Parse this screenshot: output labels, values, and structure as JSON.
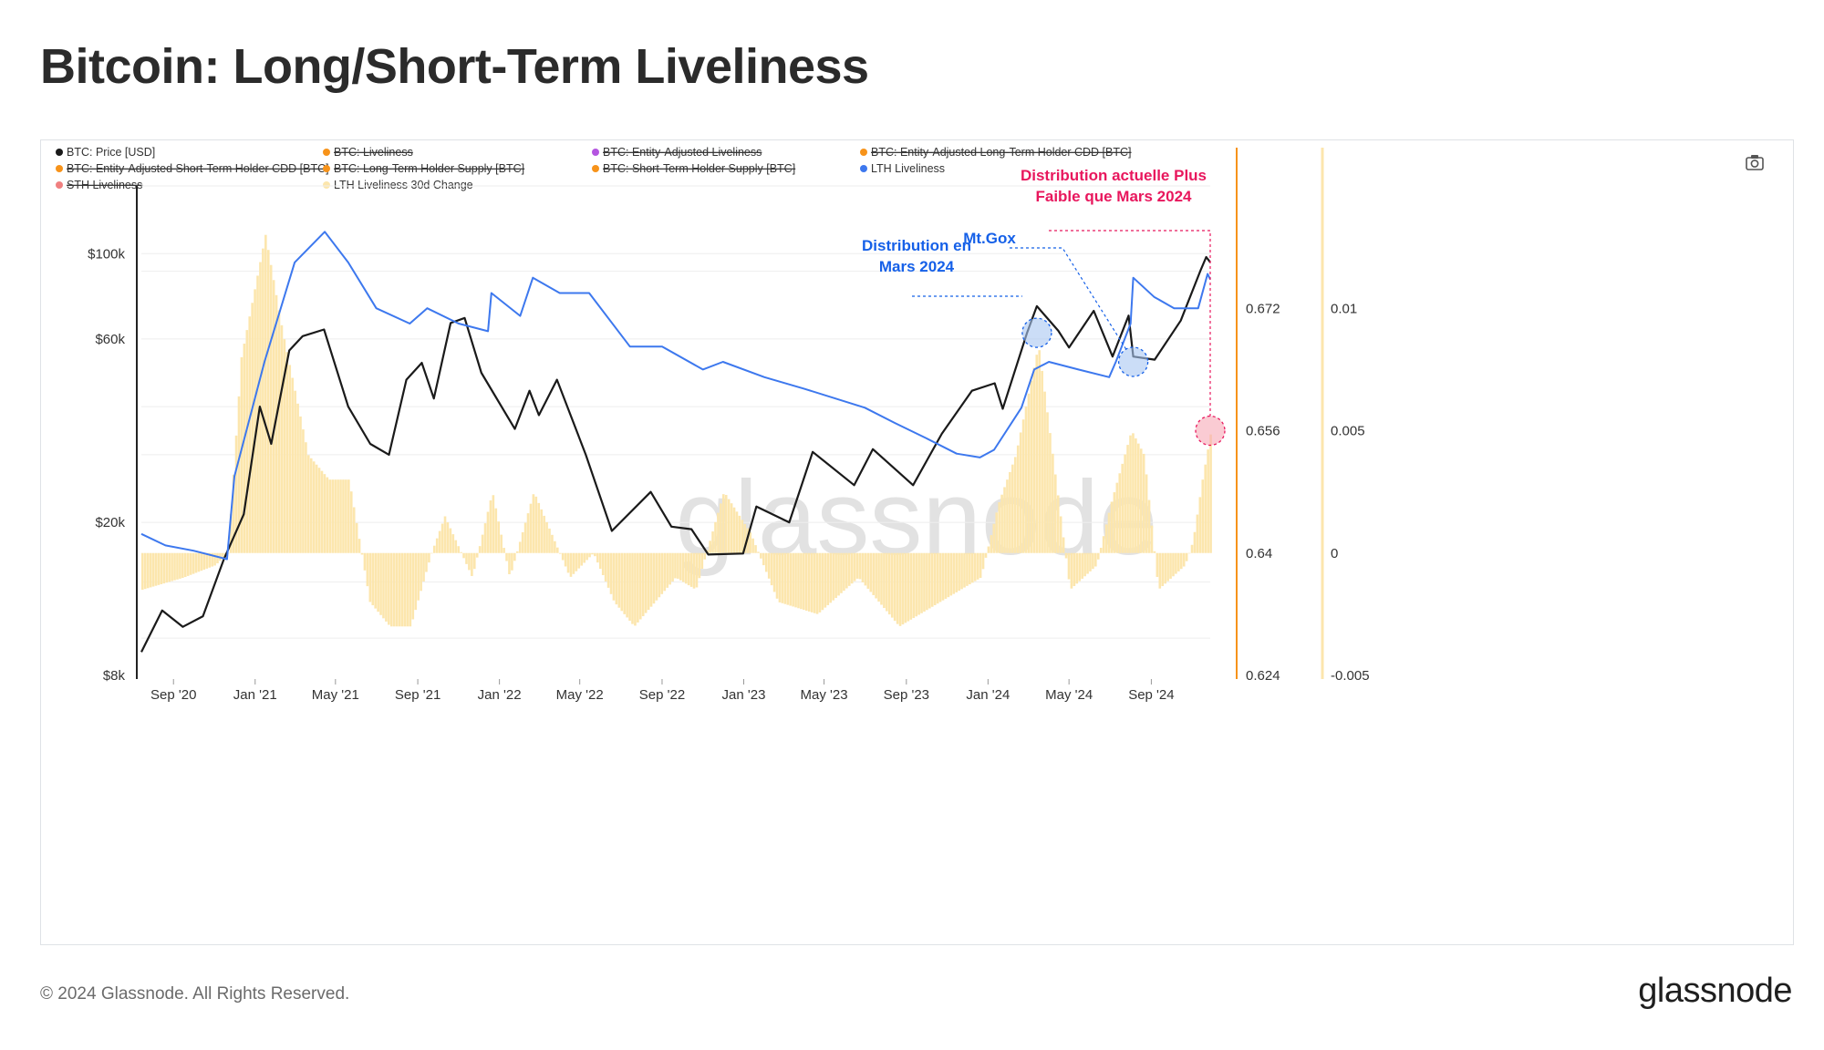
{
  "title": "Bitcoin: Long/Short-Term Liveliness",
  "footer": {
    "copyright": "© 2024 Glassnode. All Rights Reserved.",
    "logo": "glassnode"
  },
  "watermark": "glassnode",
  "camera_icon": "camera-icon",
  "legend": [
    {
      "label": "BTC: Price [USD]",
      "color": "#1a1a1a",
      "struck": false
    },
    {
      "label": "BTC: Liveliness",
      "color": "#f7931a",
      "struck": true
    },
    {
      "label": "BTC: Entity-Adjusted Liveliness",
      "color": "#b455e0",
      "struck": true
    },
    {
      "label": "BTC: Entity-Adjusted Long-Term Holder CDD [BTC]",
      "color": "#f7931a",
      "struck": true
    },
    {
      "label": "BTC: Entity-Adjusted Short-Term Holder CDD [BTC]",
      "color": "#f7931a",
      "struck": true
    },
    {
      "label": "BTC: Long-Term Holder Supply [BTC]",
      "color": "#f7931a",
      "struck": true
    },
    {
      "label": "BTC: Short-Term Holder Supply [BTC]",
      "color": "#f7931a",
      "struck": true
    },
    {
      "label": "LTH Liveliness",
      "color": "#3d78ee",
      "struck": false
    },
    {
      "label": "STH Liveliness",
      "color": "#f08080",
      "struck": true
    },
    {
      "label": "LTH Liveliness 30d Change",
      "color": "#fce6ad",
      "struck": false
    }
  ],
  "chart_data": {
    "type": "line",
    "x_ticks": [
      "Sep '20",
      "Jan '21",
      "May '21",
      "Sep '21",
      "Jan '22",
      "May '22",
      "Sep '22",
      "Jan '23",
      "May '23",
      "Sep '23",
      "Jan '24",
      "May '24",
      "Sep '24"
    ],
    "y_left_ticks": [
      "$100k",
      "$60k",
      "$20k",
      "$8k"
    ],
    "y_right_ticks": [
      "0.672",
      "0.656",
      "0.64",
      "0.624"
    ],
    "y_change_ticks": [
      "0.01",
      "0.005",
      "0",
      "-0.005"
    ],
    "y_left_scale": "log",
    "y_left_range": [
      8000,
      150000
    ],
    "y_right_range": [
      0.624,
      0.688
    ],
    "y_change_range": [
      -0.005,
      0.015
    ],
    "series": [
      {
        "name": "BTC: Price [USD]",
        "color": "#1a1a1a",
        "axis": "left",
        "points": [
          [
            "2020-07-15",
            9200
          ],
          [
            "2020-08-15",
            11800
          ],
          [
            "2020-09-15",
            10700
          ],
          [
            "2020-10-15",
            11400
          ],
          [
            "2020-11-15",
            16000
          ],
          [
            "2020-12-15",
            21000
          ],
          [
            "2021-01-08",
            40000
          ],
          [
            "2021-01-25",
            32000
          ],
          [
            "2021-02-21",
            56000
          ],
          [
            "2021-03-13",
            61000
          ],
          [
            "2021-04-14",
            63500
          ],
          [
            "2021-05-20",
            40000
          ],
          [
            "2021-06-22",
            32000
          ],
          [
            "2021-07-20",
            30000
          ],
          [
            "2021-08-15",
            47000
          ],
          [
            "2021-09-07",
            52000
          ],
          [
            "2021-09-25",
            42000
          ],
          [
            "2021-10-20",
            66000
          ],
          [
            "2021-11-10",
            68000
          ],
          [
            "2021-12-05",
            49000
          ],
          [
            "2022-01-24",
            35000
          ],
          [
            "2022-02-15",
            44000
          ],
          [
            "2022-03-01",
            38000
          ],
          [
            "2022-03-28",
            47000
          ],
          [
            "2022-05-10",
            30000
          ],
          [
            "2022-06-18",
            19000
          ],
          [
            "2022-08-15",
            24000
          ],
          [
            "2022-09-15",
            19500
          ],
          [
            "2022-10-15",
            19200
          ],
          [
            "2022-11-09",
            16500
          ],
          [
            "2022-12-31",
            16600
          ],
          [
            "2023-01-20",
            22000
          ],
          [
            "2023-03-10",
            20000
          ],
          [
            "2023-04-14",
            30500
          ],
          [
            "2023-06-15",
            25000
          ],
          [
            "2023-07-13",
            31000
          ],
          [
            "2023-09-11",
            25000
          ],
          [
            "2023-10-24",
            34000
          ],
          [
            "2023-12-08",
            44000
          ],
          [
            "2024-01-11",
            46000
          ],
          [
            "2024-01-23",
            39500
          ],
          [
            "2024-02-28",
            62000
          ],
          [
            "2024-03-14",
            73000
          ],
          [
            "2024-04-15",
            63000
          ],
          [
            "2024-05-01",
            57000
          ],
          [
            "2024-06-07",
            71000
          ],
          [
            "2024-07-05",
            54000
          ],
          [
            "2024-07-29",
            69000
          ],
          [
            "2024-08-05",
            54000
          ],
          [
            "2024-09-06",
            53000
          ],
          [
            "2024-10-15",
            67000
          ],
          [
            "2024-11-13",
            90000
          ],
          [
            "2024-11-22",
            98000
          ],
          [
            "2024-11-28",
            95000
          ]
        ]
      },
      {
        "name": "LTH Liveliness",
        "color": "#3d78ee",
        "axis": "right",
        "points": [
          [
            "2020-07-15",
            0.6425
          ],
          [
            "2020-08-20",
            0.641
          ],
          [
            "2020-10-01",
            0.6403
          ],
          [
            "2020-11-20",
            0.6392
          ],
          [
            "2020-12-01",
            0.65
          ],
          [
            "2021-01-15",
            0.665
          ],
          [
            "2021-03-01",
            0.678
          ],
          [
            "2021-04-15",
            0.682
          ],
          [
            "2021-05-20",
            0.678
          ],
          [
            "2021-07-01",
            0.672
          ],
          [
            "2021-08-20",
            0.67
          ],
          [
            "2021-09-15",
            0.672
          ],
          [
            "2021-11-01",
            0.67
          ],
          [
            "2021-12-15",
            0.669
          ],
          [
            "2021-12-20",
            0.674
          ],
          [
            "2022-02-01",
            0.671
          ],
          [
            "2022-02-20",
            0.676
          ],
          [
            "2022-04-01",
            0.674
          ],
          [
            "2022-05-15",
            0.674
          ],
          [
            "2022-07-15",
            0.667
          ],
          [
            "2022-09-01",
            0.667
          ],
          [
            "2022-11-01",
            0.664
          ],
          [
            "2022-12-01",
            0.665
          ],
          [
            "2023-02-01",
            0.663
          ],
          [
            "2023-04-01",
            0.6615
          ],
          [
            "2023-07-01",
            0.659
          ],
          [
            "2023-08-15",
            0.657
          ],
          [
            "2023-10-01",
            0.655
          ],
          [
            "2023-11-15",
            0.653
          ],
          [
            "2023-12-20",
            0.6525
          ],
          [
            "2024-01-10",
            0.6535
          ],
          [
            "2024-02-20",
            0.659
          ],
          [
            "2024-03-10",
            0.664
          ],
          [
            "2024-04-01",
            0.665
          ],
          [
            "2024-05-15",
            0.664
          ],
          [
            "2024-06-30",
            0.663
          ],
          [
            "2024-07-10",
            0.665
          ],
          [
            "2024-08-01",
            0.67
          ],
          [
            "2024-08-05",
            0.676
          ],
          [
            "2024-09-05",
            0.6735
          ],
          [
            "2024-10-05",
            0.672
          ],
          [
            "2024-11-10",
            0.672
          ],
          [
            "2024-11-24",
            0.6765
          ],
          [
            "2024-11-28",
            0.6758
          ]
        ]
      },
      {
        "name": "LTH Liveliness 30d Change",
        "color": "#fce6ad",
        "axis": "change",
        "style": "bars",
        "points": [
          [
            "2020-07-15",
            -0.0015
          ],
          [
            "2020-09-15",
            -0.001
          ],
          [
            "2020-11-01",
            -0.0005
          ],
          [
            "2020-11-20",
            0.0
          ],
          [
            "2020-12-10",
            0.008
          ],
          [
            "2021-01-15",
            0.013
          ],
          [
            "2021-02-10",
            0.009
          ],
          [
            "2021-03-20",
            0.004
          ],
          [
            "2021-04-20",
            0.003
          ],
          [
            "2021-05-20",
            0.003
          ],
          [
            "2021-06-20",
            -0.002
          ],
          [
            "2021-07-20",
            -0.003
          ],
          [
            "2021-08-20",
            -0.003
          ],
          [
            "2021-09-20",
            0.0
          ],
          [
            "2021-10-10",
            0.0015
          ],
          [
            "2021-11-20",
            -0.001
          ],
          [
            "2021-12-20",
            0.0025
          ],
          [
            "2022-01-15",
            -0.001
          ],
          [
            "2022-02-20",
            0.0025
          ],
          [
            "2022-03-15",
            0.001
          ],
          [
            "2022-04-15",
            -0.001
          ],
          [
            "2022-05-20",
            0.0
          ],
          [
            "2022-06-20",
            -0.002
          ],
          [
            "2022-07-20",
            -0.003
          ],
          [
            "2022-08-20",
            -0.002
          ],
          [
            "2022-09-20",
            -0.001
          ],
          [
            "2022-10-20",
            -0.0015
          ],
          [
            "2022-12-01",
            0.0025
          ],
          [
            "2023-01-10",
            0.0008
          ],
          [
            "2023-02-20",
            -0.002
          ],
          [
            "2023-04-20",
            -0.0025
          ],
          [
            "2023-06-20",
            -0.001
          ],
          [
            "2023-08-20",
            -0.003
          ],
          [
            "2023-10-20",
            -0.002
          ],
          [
            "2023-12-20",
            -0.001
          ],
          [
            "2024-01-15",
            0.002
          ],
          [
            "2024-02-10",
            0.004
          ],
          [
            "2024-03-15",
            0.0085
          ],
          [
            "2024-04-10",
            0.003
          ],
          [
            "2024-05-01",
            -0.0015
          ],
          [
            "2024-06-10",
            -0.0005
          ],
          [
            "2024-07-01",
            0.002
          ],
          [
            "2024-08-01",
            0.005
          ],
          [
            "2024-08-20",
            0.004
          ],
          [
            "2024-09-10",
            -0.0015
          ],
          [
            "2024-10-20",
            -0.0005
          ],
          [
            "2024-11-01",
            0.0005
          ],
          [
            "2024-11-15",
            0.003
          ],
          [
            "2024-11-28",
            0.005
          ]
        ]
      }
    ],
    "annotations": [
      {
        "text": [
          "Distribution en",
          "Mars 2024"
        ],
        "color": "#1560e8",
        "target_date": "2024-03-14",
        "target_value": 0.6688
      },
      {
        "text": [
          "Mt.Gox"
        ],
        "color": "#1560e8",
        "target_date": "2024-08-05",
        "target_value": 0.665
      },
      {
        "text": [
          "Distribution actuelle Plus",
          "Faible que Mars 2024"
        ],
        "color": "#e8175d",
        "target_date": "2024-11-28",
        "target_value": 0.656
      }
    ]
  }
}
